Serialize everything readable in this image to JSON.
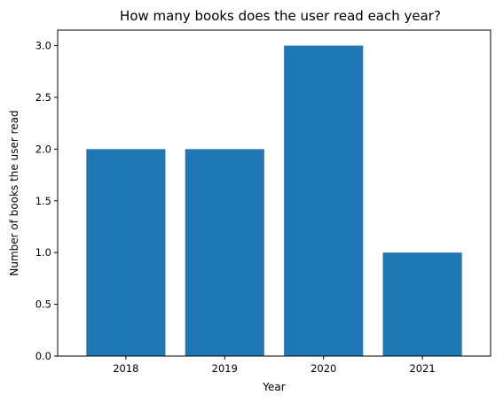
{
  "chart_data": {
    "type": "bar",
    "title": "How many books does the user read each year?",
    "xlabel": "Year",
    "ylabel": "Number of books the user read",
    "categories": [
      "2018",
      "2019",
      "2020",
      "2021"
    ],
    "values": [
      2,
      2,
      3,
      1
    ],
    "ylim": [
      0,
      3.15
    ],
    "yticks": [
      "0.0",
      "0.5",
      "1.0",
      "1.5",
      "2.0",
      "2.5",
      "3.0"
    ],
    "grid": false,
    "legend": "none",
    "bar_color": "#1f77b4"
  }
}
